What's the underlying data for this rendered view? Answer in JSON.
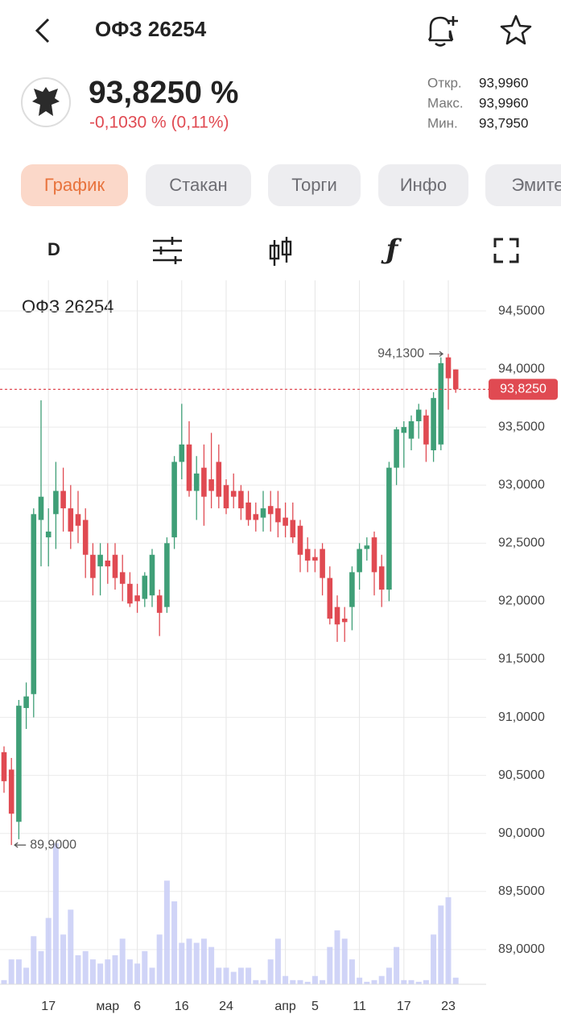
{
  "header": {
    "title": "ОФЗ 26254"
  },
  "quote": {
    "price": "93,8250 %",
    "change": "-0,1030 % (0,11%)",
    "stats": [
      {
        "label": "Откр.",
        "value": "93,9960"
      },
      {
        "label": "Макс.",
        "value": "93,9960"
      },
      {
        "label": "Мин.",
        "value": "93,7950"
      }
    ]
  },
  "tabs": [
    "График",
    "Стакан",
    "Торги",
    "Инфо",
    "Эмите"
  ],
  "toolbar": {
    "interval": "D",
    "function": "ƒ"
  },
  "chart_data": {
    "type": "candlestick",
    "title": "ОФЗ 26254",
    "categories": [
      null,
      null,
      null,
      null,
      null,
      null,
      "17",
      null,
      null,
      null,
      null,
      null,
      null,
      null,
      "мар",
      null,
      null,
      null,
      "6",
      null,
      null,
      null,
      null,
      null,
      "16",
      null,
      null,
      null,
      null,
      null,
      "24",
      null,
      null,
      null,
      null,
      null,
      null,
      null,
      "апр",
      null,
      null,
      null,
      "5",
      null,
      null,
      null,
      null,
      null,
      "11",
      null,
      null,
      null,
      null,
      null,
      "17",
      null,
      null,
      null,
      null,
      null,
      "23",
      null
    ],
    "open": [
      90.7,
      90.55,
      90.1,
      91.08,
      91.2,
      92.7,
      92.55,
      92.75,
      92.95,
      92.8,
      92.75,
      92.7,
      92.4,
      92.3,
      92.35,
      92.4,
      92.25,
      92.15,
      92.05,
      92.02,
      92.05,
      92.05,
      91.95,
      92.55,
      93.2,
      93.35,
      92.95,
      93.15,
      93.05,
      93.2,
      93.0,
      92.95,
      92.95,
      92.85,
      92.75,
      92.72,
      92.82,
      92.8,
      92.72,
      92.7,
      92.65,
      92.45,
      92.38,
      92.45,
      92.2,
      91.95,
      91.85,
      91.95,
      92.25,
      92.45,
      92.55,
      92.3,
      92.1,
      93.15,
      93.45,
      93.4,
      93.55,
      93.6,
      93.3,
      93.35,
      94.1,
      93.996
    ],
    "high": [
      90.75,
      90.65,
      91.15,
      91.3,
      92.8,
      93.73,
      92.8,
      93.2,
      93.15,
      93.0,
      92.95,
      92.8,
      92.5,
      92.5,
      92.5,
      92.5,
      92.4,
      92.25,
      92.15,
      92.25,
      92.45,
      92.1,
      92.55,
      93.25,
      93.7,
      93.55,
      93.25,
      93.35,
      93.45,
      93.35,
      93.05,
      93.1,
      93.0,
      92.95,
      92.85,
      92.95,
      92.95,
      92.95,
      92.85,
      92.85,
      92.7,
      92.55,
      92.45,
      92.5,
      92.3,
      92.05,
      91.95,
      92.3,
      92.5,
      92.55,
      92.6,
      92.4,
      93.2,
      93.5,
      93.55,
      93.6,
      93.7,
      93.65,
      93.8,
      94.1,
      94.13,
      93.996
    ],
    "low": [
      90.35,
      89.9,
      89.95,
      90.9,
      91.0,
      92.3,
      92.3,
      92.45,
      92.6,
      92.45,
      92.5,
      92.2,
      92.05,
      92.05,
      92.15,
      92.1,
      92.0,
      91.95,
      91.9,
      91.95,
      91.95,
      91.7,
      91.9,
      92.45,
      93.05,
      92.9,
      92.7,
      92.65,
      92.8,
      92.8,
      92.75,
      92.8,
      92.7,
      92.65,
      92.6,
      92.6,
      92.6,
      92.55,
      92.55,
      92.5,
      92.25,
      92.25,
      92.25,
      92.05,
      91.8,
      91.65,
      91.65,
      91.75,
      92.1,
      92.35,
      92.05,
      91.95,
      92.0,
      93.0,
      93.15,
      93.3,
      93.4,
      93.2,
      93.2,
      93.3,
      93.65,
      93.795
    ],
    "close": [
      90.45,
      90.17,
      91.1,
      91.18,
      92.75,
      92.9,
      92.6,
      92.95,
      92.8,
      92.6,
      92.65,
      92.4,
      92.2,
      92.4,
      92.3,
      92.2,
      92.15,
      91.98,
      92.0,
      92.22,
      92.4,
      91.9,
      92.5,
      93.2,
      93.35,
      92.95,
      93.1,
      92.9,
      92.95,
      92.9,
      92.8,
      92.9,
      92.8,
      92.7,
      92.7,
      92.8,
      92.75,
      92.68,
      92.65,
      92.55,
      92.4,
      92.35,
      92.35,
      92.2,
      91.85,
      91.8,
      91.82,
      92.25,
      92.45,
      92.48,
      92.25,
      92.1,
      93.15,
      93.48,
      93.5,
      93.55,
      93.65,
      93.35,
      93.75,
      94.05,
      93.92,
      93.825
    ],
    "volume": [
      5,
      30,
      30,
      20,
      58,
      40,
      80,
      170,
      60,
      90,
      35,
      40,
      30,
      25,
      30,
      35,
      55,
      30,
      25,
      40,
      20,
      60,
      125,
      100,
      50,
      55,
      50,
      55,
      45,
      20,
      20,
      15,
      20,
      20,
      5,
      5,
      30,
      55,
      10,
      5,
      5,
      3,
      10,
      5,
      45,
      65,
      55,
      30,
      8,
      3,
      5,
      10,
      20,
      45,
      5,
      5,
      3,
      5,
      60,
      95,
      105,
      8
    ],
    "up_color": "#3f9f77",
    "down_color": "#e04a52",
    "volume_color": "#c8cdf6",
    "ylim": [
      88.68,
      94.75
    ],
    "yticks": [
      {
        "value": 94.5,
        "label": "94,5000"
      },
      {
        "value": 94.0,
        "label": "94,0000"
      },
      {
        "value": 93.5,
        "label": "93,5000"
      },
      {
        "value": 93.0,
        "label": "93,0000"
      },
      {
        "value": 92.5,
        "label": "92,5000"
      },
      {
        "value": 92.0,
        "label": "92,0000"
      },
      {
        "value": 91.5,
        "label": "91,5000"
      },
      {
        "value": 91.0,
        "label": "91,0000"
      },
      {
        "value": 90.5,
        "label": "90,5000"
      },
      {
        "value": 90.0,
        "label": "90,0000"
      },
      {
        "value": 89.5,
        "label": "89,5000"
      },
      {
        "value": 89.0,
        "label": "89,0000"
      }
    ],
    "grid": true,
    "last_price": {
      "value": 93.825,
      "label": "93,8250"
    },
    "extremes": {
      "max": {
        "value": 94.13,
        "label": "94,1300"
      },
      "min": {
        "value": 89.9,
        "label": "89,9000"
      }
    }
  }
}
